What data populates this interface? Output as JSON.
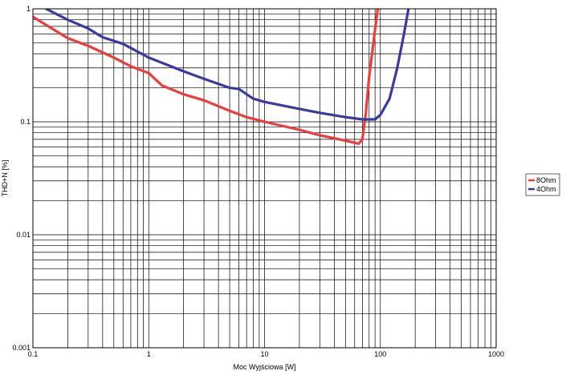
{
  "chart_data": {
    "type": "line",
    "title": "",
    "xlabel": "Moc Wyjściowa [W]",
    "ylabel": "THD+N [%]",
    "xscale": "log",
    "yscale": "log",
    "xlim": [
      0.1,
      1000
    ],
    "ylim": [
      0.001,
      1
    ],
    "grid": true,
    "legend_position": "right",
    "x_ticks": [
      {
        "value": 0.1,
        "label": "0.1"
      },
      {
        "value": 1,
        "label": "1"
      },
      {
        "value": 10,
        "label": "10"
      },
      {
        "value": 100,
        "label": "100"
      },
      {
        "value": 1000,
        "label": "1000"
      }
    ],
    "y_ticks": [
      {
        "value": 1,
        "label": "1"
      },
      {
        "value": 0.1,
        "label": "0.1"
      },
      {
        "value": 0.01,
        "label": "0.01"
      },
      {
        "value": 0.001,
        "label": "0.001"
      }
    ],
    "series": [
      {
        "name": "8Ohm",
        "color": "#ee3b3b",
        "points": [
          [
            0.1,
            0.85
          ],
          [
            0.13,
            0.72
          ],
          [
            0.2,
            0.55
          ],
          [
            0.3,
            0.47
          ],
          [
            0.5,
            0.37
          ],
          [
            0.7,
            0.31
          ],
          [
            1.0,
            0.27
          ],
          [
            1.3,
            0.21
          ],
          [
            2.0,
            0.175
          ],
          [
            3.0,
            0.155
          ],
          [
            5.0,
            0.125
          ],
          [
            7.0,
            0.11
          ],
          [
            10,
            0.1
          ],
          [
            20,
            0.085
          ],
          [
            30,
            0.076
          ],
          [
            50,
            0.068
          ],
          [
            65,
            0.064
          ],
          [
            70,
            0.07
          ],
          [
            75,
            0.12
          ],
          [
            80,
            0.25
          ],
          [
            90,
            0.65
          ],
          [
            95,
            1.0
          ]
        ]
      },
      {
        "name": "4Ohm",
        "color": "#3a3aa0",
        "points": [
          [
            0.13,
            1.0
          ],
          [
            0.2,
            0.8
          ],
          [
            0.3,
            0.67
          ],
          [
            0.4,
            0.56
          ],
          [
            0.6,
            0.49
          ],
          [
            1.0,
            0.37
          ],
          [
            2.0,
            0.28
          ],
          [
            3.0,
            0.24
          ],
          [
            5.0,
            0.2
          ],
          [
            6.0,
            0.195
          ],
          [
            8.0,
            0.16
          ],
          [
            10,
            0.15
          ],
          [
            20,
            0.13
          ],
          [
            30,
            0.12
          ],
          [
            50,
            0.11
          ],
          [
            70,
            0.105
          ],
          [
            90,
            0.105
          ],
          [
            100,
            0.115
          ],
          [
            120,
            0.16
          ],
          [
            140,
            0.3
          ],
          [
            160,
            0.6
          ],
          [
            175,
            1.0
          ]
        ]
      }
    ]
  }
}
